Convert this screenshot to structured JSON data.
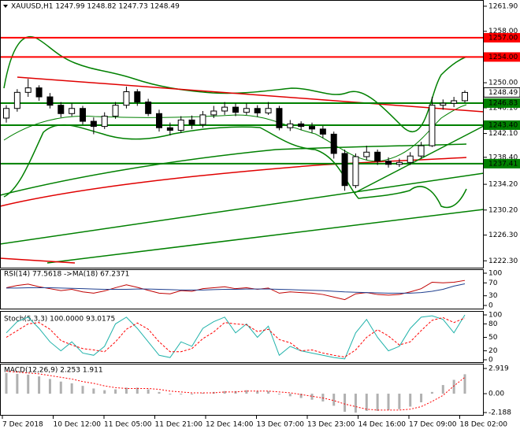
{
  "chart_data": [
    {
      "type": "candlestick",
      "title": "XAUUSD,H1  1247.99 1248.82 1247.73 1248.49",
      "ylim": [
        1221.6,
        1262.5
      ],
      "yticks": [
        {
          "value": 1261.9,
          "label": "1261.90"
        },
        {
          "value": 1258,
          "label": "1258.00"
        },
        {
          "value": 1254,
          "label": "1254.00"
        },
        {
          "value": 1250,
          "label": "1250.00"
        },
        {
          "value": 1246.1,
          "label": "1246.10"
        },
        {
          "value": 1242.1,
          "label": "1242.10"
        },
        {
          "value": 1238.4,
          "label": "1238.40"
        },
        {
          "value": 1234.2,
          "label": "1234.20"
        },
        {
          "value": 1230.2,
          "label": "1230.20"
        },
        {
          "value": 1226.3,
          "label": "1226.30"
        },
        {
          "value": 1222.3,
          "label": "1222.30"
        }
      ],
      "levels": [
        {
          "value": 1257,
          "label": "1257.00",
          "color": "#ff0000"
        },
        {
          "value": 1254,
          "label": "1254.00",
          "color": "#ff0000"
        },
        {
          "value": 1246.83,
          "label": "1246.83",
          "color": "#008000"
        },
        {
          "value": 1243.4,
          "label": "1243.40",
          "color": "#008000"
        },
        {
          "value": 1237.41,
          "label": "1237.41",
          "color": "#008000"
        }
      ],
      "last_price": {
        "value": 1248.49,
        "label": "1248.49"
      },
      "candles": [
        [
          1244.5,
          1246.5,
          1243.8,
          1246.0
        ],
        [
          1246.0,
          1249.0,
          1245.5,
          1248.5
        ],
        [
          1248.5,
          1250.6,
          1247.8,
          1249.2
        ],
        [
          1249.2,
          1249.6,
          1247.2,
          1247.8
        ],
        [
          1247.8,
          1248.4,
          1246.0,
          1246.5
        ],
        [
          1246.5,
          1247.0,
          1244.6,
          1245.2
        ],
        [
          1245.2,
          1246.8,
          1244.8,
          1246.0
        ],
        [
          1246.0,
          1246.4,
          1243.5,
          1244.0
        ],
        [
          1244.0,
          1244.6,
          1242.0,
          1243.2
        ],
        [
          1243.2,
          1245.4,
          1242.8,
          1244.8
        ],
        [
          1244.8,
          1247.0,
          1244.4,
          1246.5
        ],
        [
          1246.5,
          1249.4,
          1246.0,
          1248.6
        ],
        [
          1248.6,
          1249.0,
          1246.4,
          1247.0
        ],
        [
          1247.0,
          1247.5,
          1244.8,
          1245.2
        ],
        [
          1245.2,
          1245.8,
          1242.4,
          1243.0
        ],
        [
          1243.0,
          1243.8,
          1241.8,
          1242.6
        ],
        [
          1242.6,
          1244.8,
          1242.2,
          1244.2
        ],
        [
          1244.2,
          1244.9,
          1242.8,
          1243.5
        ],
        [
          1243.5,
          1245.6,
          1243.0,
          1245.0
        ],
        [
          1245.0,
          1246.4,
          1244.5,
          1245.6
        ],
        [
          1245.6,
          1247.0,
          1245.0,
          1246.2
        ],
        [
          1246.2,
          1246.8,
          1244.8,
          1245.4
        ],
        [
          1245.4,
          1246.8,
          1245.0,
          1246.0
        ],
        [
          1246.0,
          1246.5,
          1244.7,
          1245.3
        ],
        [
          1245.3,
          1247.0,
          1245.0,
          1246.0
        ],
        [
          1246.0,
          1246.4,
          1242.6,
          1243.0
        ],
        [
          1243.0,
          1244.2,
          1242.5,
          1243.6
        ],
        [
          1243.6,
          1244.0,
          1242.6,
          1243.2
        ],
        [
          1243.2,
          1243.8,
          1242.2,
          1242.8
        ],
        [
          1242.8,
          1243.3,
          1241.4,
          1242.0
        ],
        [
          1242.0,
          1242.4,
          1238.2,
          1239.0
        ],
        [
          1239.0,
          1239.6,
          1233.2,
          1234.0
        ],
        [
          1234.0,
          1239.0,
          1233.6,
          1238.5
        ],
        [
          1238.5,
          1240.2,
          1238.0,
          1239.2
        ],
        [
          1239.2,
          1239.6,
          1237.2,
          1237.8
        ],
        [
          1237.8,
          1238.4,
          1236.8,
          1237.3
        ],
        [
          1237.3,
          1238.2,
          1236.9,
          1237.6
        ],
        [
          1237.6,
          1239.2,
          1237.2,
          1238.6
        ],
        [
          1238.6,
          1240.8,
          1238.2,
          1240.2
        ],
        [
          1240.2,
          1247.8,
          1240.0,
          1246.5
        ],
        [
          1246.5,
          1247.4,
          1245.8,
          1246.8
        ],
        [
          1246.8,
          1247.8,
          1246.2,
          1247.2
        ],
        [
          1247.2,
          1248.82,
          1246.9,
          1248.49
        ]
      ]
    },
    {
      "type": "line",
      "title": "RSI(14) 77.5618 ->MA(18) 67.2371",
      "ylim": [
        0,
        100
      ],
      "yticks": [
        100,
        70,
        30,
        0
      ],
      "series": [
        {
          "name": "RSI(14)",
          "color": "#c00000",
          "values": [
            55,
            62,
            66,
            58,
            52,
            46,
            50,
            42,
            38,
            45,
            55,
            64,
            56,
            47,
            38,
            36,
            46,
            44,
            52,
            55,
            58,
            52,
            55,
            50,
            54,
            38,
            42,
            40,
            38,
            34,
            26,
            18,
            36,
            40,
            34,
            32,
            34,
            42,
            52,
            72,
            70,
            72,
            77.6
          ]
        },
        {
          "name": "MA(18)",
          "color": "#1f3f8f",
          "values": [
            54,
            54,
            55,
            55,
            55,
            54,
            53,
            52,
            51,
            50,
            50,
            50,
            51,
            51,
            50,
            49,
            48,
            48,
            48,
            49,
            50,
            50,
            51,
            51,
            51,
            50,
            49,
            48,
            47,
            46,
            44,
            42,
            41,
            40,
            39,
            38,
            38,
            38,
            40,
            44,
            50,
            60,
            67
          ]
        }
      ]
    },
    {
      "type": "line",
      "title": "Stoch(5,3,3) 100.0000 93.0175",
      "ylim": [
        0,
        100
      ],
      "yticks": [
        100,
        80,
        50,
        20,
        0
      ],
      "series": [
        {
          "name": "Main",
          "color": "#20b2aa",
          "values": [
            60,
            85,
            95,
            70,
            40,
            20,
            40,
            15,
            10,
            30,
            80,
            95,
            70,
            40,
            10,
            5,
            40,
            30,
            70,
            85,
            95,
            60,
            80,
            50,
            75,
            10,
            30,
            20,
            15,
            10,
            5,
            2,
            60,
            90,
            50,
            20,
            30,
            70,
            95,
            98,
            90,
            60,
            100
          ]
        },
        {
          "name": "Signal",
          "color": "#ff0000",
          "dash": true,
          "values": [
            50,
            65,
            80,
            83,
            68,
            43,
            33,
            25,
            22,
            18,
            40,
            68,
            82,
            68,
            40,
            18,
            18,
            25,
            47,
            62,
            83,
            80,
            78,
            63,
            68,
            45,
            38,
            20,
            22,
            15,
            10,
            6,
            22,
            50,
            67,
            53,
            33,
            40,
            65,
            88,
            94,
            83,
            93
          ]
        }
      ]
    },
    {
      "type": "macd",
      "title": "MACD(12,26,9) 2.253 1.911",
      "ylim": [
        -2.55,
        3.38
      ],
      "yticks": [
        2.919,
        {
          "value": 0,
          "label": "0.00"
        },
        -2.188
      ],
      "series": [
        {
          "name": "MACD",
          "color": "#b0b0b0",
          "values": [
            2.4,
            2.3,
            2.2,
            2.0,
            1.7,
            1.4,
            1.2,
            0.9,
            0.6,
            0.4,
            0.5,
            0.7,
            0.7,
            0.5,
            0.2,
            -0.1,
            -0.1,
            -0.1,
            0.1,
            0.2,
            0.3,
            0.3,
            0.4,
            0.3,
            0.3,
            -0.1,
            -0.3,
            -0.5,
            -0.7,
            -0.9,
            -1.4,
            -2.1,
            -2.2,
            -2.0,
            -2.0,
            -1.9,
            -1.8,
            -1.5,
            -1.0,
            0.2,
            1.0,
            1.6,
            2.25
          ]
        },
        {
          "name": "Signal",
          "color": "#ff0000",
          "values": [
            2.6,
            2.5,
            2.4,
            2.3,
            2.1,
            1.9,
            1.7,
            1.4,
            1.2,
            0.9,
            0.7,
            0.6,
            0.6,
            0.6,
            0.5,
            0.3,
            0.2,
            0.1,
            0.1,
            0.1,
            0.2,
            0.2,
            0.3,
            0.3,
            0.3,
            0.2,
            0.1,
            -0.1,
            -0.3,
            -0.5,
            -0.8,
            -1.2,
            -1.5,
            -1.8,
            -1.9,
            -1.9,
            -1.9,
            -1.8,
            -1.5,
            -0.9,
            -0.2,
            0.9,
            1.9
          ]
        }
      ],
      "x_labels": [
        "7 Dec 2018",
        "10 Dec 12:00",
        "11 Dec 05:00",
        "11 Dec 21:00",
        "12 Dec 14:00",
        "13 Dec 07:00",
        "13 Dec 23:00",
        "14 Dec 16:00",
        "17 Dec 09:00",
        "18 Dec 02:00"
      ]
    }
  ]
}
